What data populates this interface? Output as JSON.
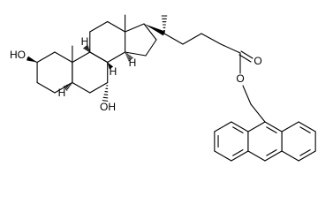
{
  "atoms": [
    {
      "label": "HO"
    },
    {
      "label": "H"
    },
    {
      "label": "H"
    },
    {
      "label": "H"
    },
    {
      "label": "H"
    },
    {
      "label": "OH"
    },
    {
      "label": "O"
    },
    {
      "label": "O"
    }
  ]
}
